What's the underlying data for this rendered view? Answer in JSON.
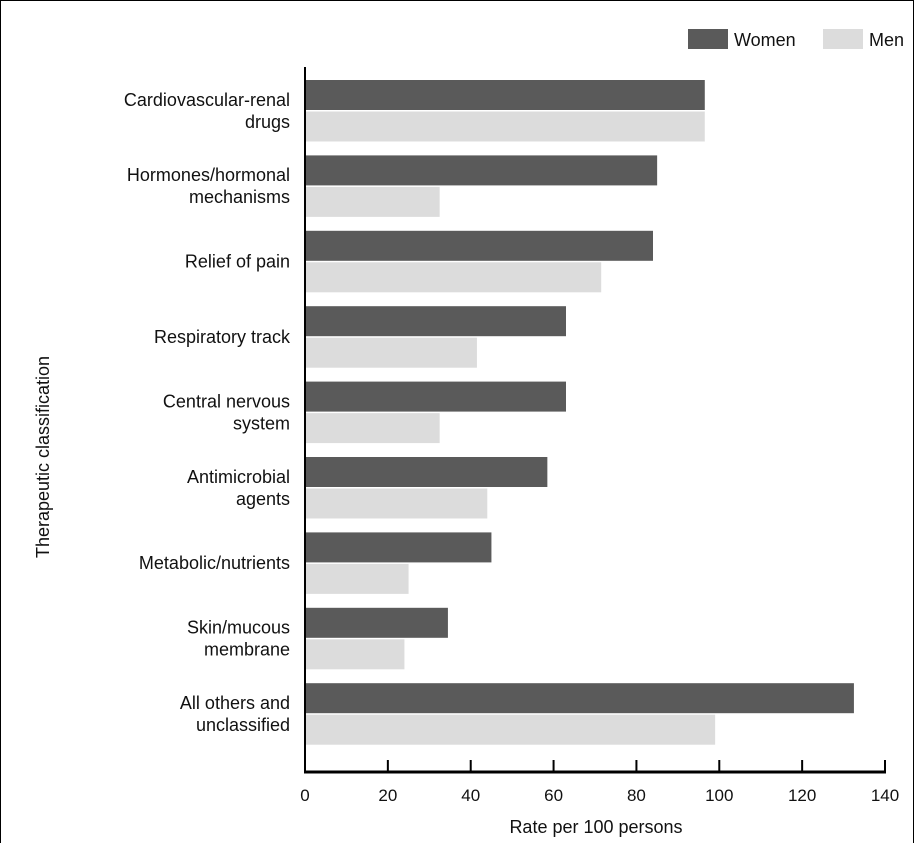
{
  "chart_data": {
    "type": "bar",
    "orientation": "horizontal",
    "categories": [
      [
        "Cardiovascular-renal",
        "drugs"
      ],
      [
        "Hormones/hormonal",
        "mechanisms"
      ],
      [
        "Relief of pain"
      ],
      [
        "Respiratory track"
      ],
      [
        "Central nervous",
        "system"
      ],
      [
        "Antimicrobial",
        "agents"
      ],
      [
        "Metabolic/nutrients"
      ],
      [
        "Skin/mucous",
        "membrane"
      ],
      [
        "All others and",
        "unclassified"
      ]
    ],
    "series": [
      {
        "name": "Women",
        "color": "#5a5a5a",
        "values": [
          96.5,
          85,
          84,
          63,
          63,
          58.5,
          45,
          34.5,
          132.5
        ]
      },
      {
        "name": "Men",
        "color": "#dcdcdc",
        "values": [
          96.5,
          32.5,
          71.5,
          41.5,
          32.5,
          44,
          25,
          24,
          99
        ]
      }
    ],
    "xlabel": "Rate per 100 persons",
    "ylabel": "Therapeutic classification",
    "xlim": [
      0,
      140
    ],
    "xticks": [
      0,
      20,
      40,
      60,
      80,
      100,
      120,
      140
    ],
    "legend_position": "top-right",
    "grid": false
  }
}
